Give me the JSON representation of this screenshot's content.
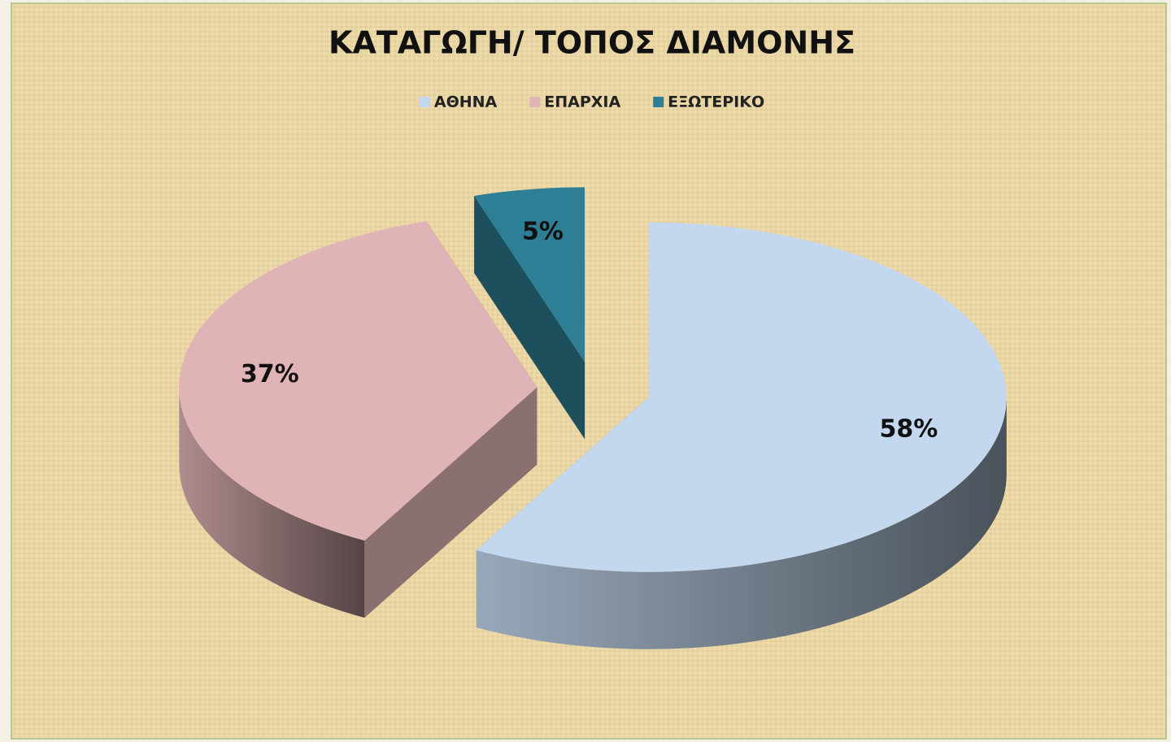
{
  "chart_data": {
    "type": "pie3d",
    "title": "ΚΑΤΑΓΩΓΗ/ ΤΟΠΟΣ ΔΙΑΜΟΝΗΣ",
    "categories": [
      "ΑΘΗΝΑ",
      "ΕΠΑΡΧΙΑ",
      "ΕΞΩΤΕΡΙΚΟ"
    ],
    "values": [
      58,
      37,
      5
    ],
    "value_labels": [
      "58%",
      "37%",
      "5%"
    ],
    "colors": [
      "#c3d7ee",
      "#e0b4b6",
      "#2e7f96"
    ],
    "legend": "top"
  }
}
